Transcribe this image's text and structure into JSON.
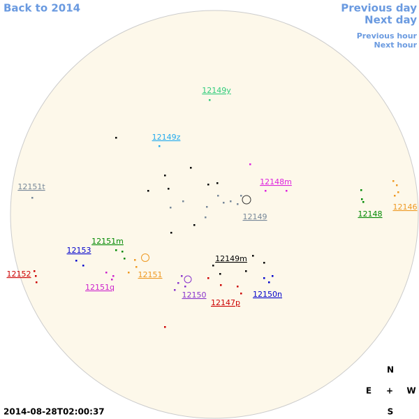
{
  "nav": {
    "back": "Back to 2014",
    "previous_day": "Previous day",
    "next_day": "Next day",
    "previous_hour": "Previous hour",
    "next_hour": "Next hour"
  },
  "timestamp": "2014-08-28T02:00:37",
  "compass": {
    "north": "N",
    "east": "E",
    "center": "+",
    "west": "W",
    "south": "S"
  },
  "regions": [
    {
      "label": "12149y",
      "color": "#2fcc7a"
    },
    {
      "label": "12149z",
      "color": "#22aaee"
    },
    {
      "label": "12151t",
      "color": "#778899"
    },
    {
      "label": "12148m",
      "color": "#dd22dd"
    },
    {
      "label": "12149",
      "color": "#778899"
    },
    {
      "label": "12148",
      "color": "#008800"
    },
    {
      "label": "12146",
      "color": "#ee9922"
    },
    {
      "label": "12151m",
      "color": "#008800"
    },
    {
      "label": "12153",
      "color": "#0000cc"
    },
    {
      "label": "12149m",
      "color": "#000000"
    },
    {
      "label": "12152",
      "color": "#cc0000"
    },
    {
      "label": "12151",
      "color": "#ee9922"
    },
    {
      "label": "12151q",
      "color": "#cc22cc"
    },
    {
      "label": "12150",
      "color": "#8833cc"
    },
    {
      "label": "12150n",
      "color": "#0000cc"
    },
    {
      "label": "12147p",
      "color": "#cc0000"
    }
  ]
}
